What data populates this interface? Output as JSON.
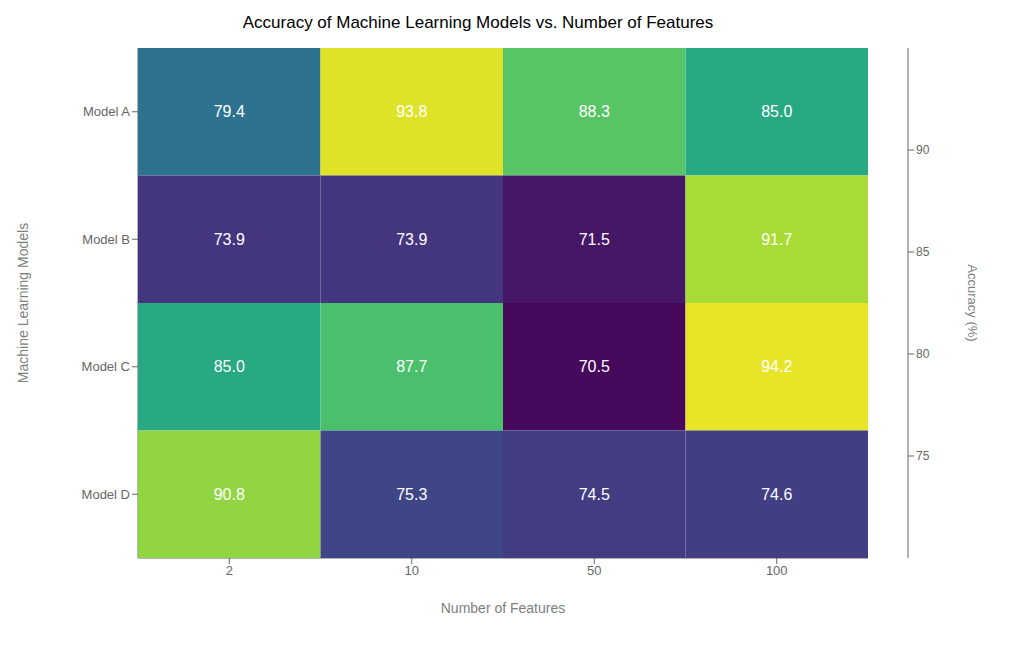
{
  "chart_data": {
    "type": "heatmap",
    "title": "Accuracy of Machine Learning Models vs. Number of Features",
    "xlabel": "Number of Features",
    "ylabel": "Machine Learning Models",
    "categories": [
      "2",
      "10",
      "50",
      "100"
    ],
    "y_categories": [
      "Model A",
      "Model B",
      "Model C",
      "Model D"
    ],
    "values": [
      [
        79.4,
        93.8,
        88.3,
        85.0
      ],
      [
        73.9,
        73.9,
        71.5,
        91.7
      ],
      [
        85.0,
        87.7,
        70.5,
        94.2
      ],
      [
        90.8,
        75.3,
        74.5,
        74.6
      ]
    ],
    "value_labels": [
      [
        "79.4",
        "93.8",
        "88.3",
        "85.0"
      ],
      [
        "73.9",
        "73.9",
        "71.5",
        "91.7"
      ],
      [
        "85.0",
        "87.7",
        "70.5",
        "94.2"
      ],
      [
        "90.8",
        "75.3",
        "74.5",
        "74.6"
      ]
    ],
    "data_labels": true,
    "color": "viridis",
    "colorbar_label": "Accuracy (%)",
    "colorbar_range": [
      70,
      95
    ],
    "colorbar_ticks": [
      75,
      80,
      85,
      90
    ]
  }
}
